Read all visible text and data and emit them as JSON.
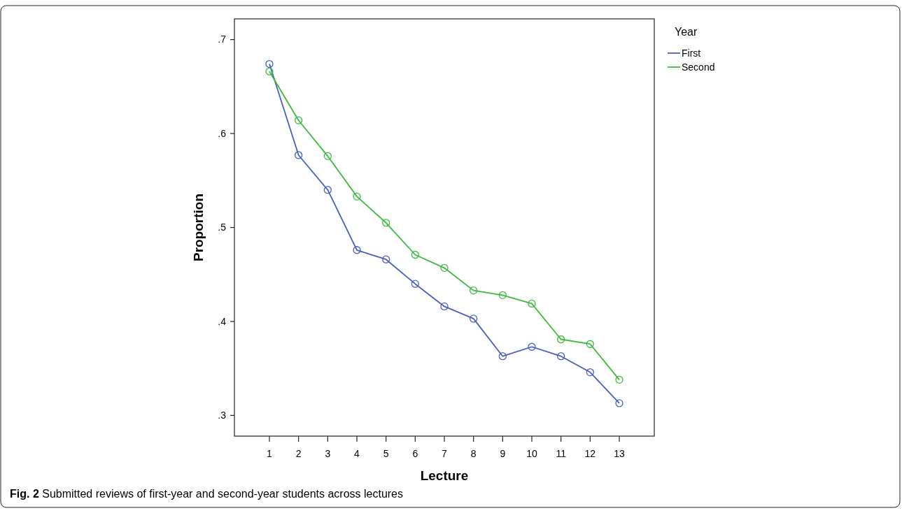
{
  "chart_data": {
    "type": "line",
    "xlabel": "Lecture",
    "ylabel": "Proportion",
    "legend_title": "Year",
    "legend": "top right",
    "marker": "circle",
    "line_style": "solid",
    "grid": false,
    "x": [
      1,
      2,
      3,
      4,
      5,
      6,
      7,
      8,
      9,
      10,
      11,
      12,
      13
    ],
    "xlim": [
      -0.2,
      14.2
    ],
    "xticks": [
      1,
      2,
      3,
      4,
      5,
      6,
      7,
      8,
      9,
      10,
      11,
      12,
      13
    ],
    "ylim": [
      0.278,
      0.722
    ],
    "yticks": [
      {
        "value": 0.3,
        "label": ".3"
      },
      {
        "value": 0.4,
        "label": ".4"
      },
      {
        "value": 0.5,
        "label": ".5"
      },
      {
        "value": 0.6,
        "label": ".6"
      },
      {
        "value": 0.7,
        "label": ".7"
      }
    ],
    "series": [
      {
        "name": "First",
        "color": "#4a5fc1",
        "values": [
          0.674,
          0.577,
          0.54,
          0.476,
          0.466,
          0.44,
          0.416,
          0.403,
          0.363,
          0.373,
          0.363,
          0.346,
          0.313
        ]
      },
      {
        "name": "Second",
        "color": "#3cba3c",
        "values": [
          0.666,
          0.614,
          0.576,
          0.533,
          0.505,
          0.471,
          0.457,
          0.433,
          0.428,
          0.419,
          0.381,
          0.376,
          0.338
        ]
      }
    ],
    "annotations": [
      "Fig. 2",
      "Submitted reviews of first-year and second-year students across lectures"
    ]
  }
}
